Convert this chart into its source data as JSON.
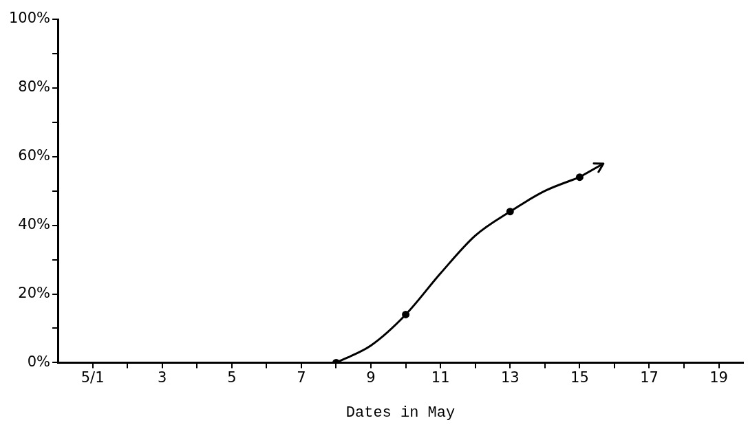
{
  "chart_data": {
    "type": "line",
    "xlabel": "Dates in May",
    "xlim": [
      0,
      19.7
    ],
    "ylim": [
      0,
      100
    ],
    "xticks": [
      {
        "value": 1,
        "label": "5/1"
      },
      {
        "value": 2,
        "label": null
      },
      3,
      {
        "value": 4,
        "label": null
      },
      5,
      {
        "value": 6,
        "label": null
      },
      7,
      {
        "value": 8,
        "label": null
      },
      9,
      {
        "value": 10,
        "label": null
      },
      11,
      {
        "value": 12,
        "label": null
      },
      13,
      {
        "value": 14,
        "label": null
      },
      15,
      {
        "value": 16,
        "label": null
      },
      17,
      {
        "value": 18,
        "label": null
      },
      19
    ],
    "yticks": [
      {
        "value": 0,
        "label": "0%"
      },
      {
        "value": 10,
        "label": null
      },
      {
        "value": 20,
        "label": "20%"
      },
      {
        "value": 30,
        "label": null
      },
      {
        "value": 40,
        "label": "40%"
      },
      {
        "value": 50,
        "label": null
      },
      {
        "value": 60,
        "label": "60%"
      },
      {
        "value": 70,
        "label": null
      },
      {
        "value": 80,
        "label": "80%"
      },
      {
        "value": 90,
        "label": null
      },
      {
        "value": 100,
        "label": "100%"
      }
    ],
    "grid": false,
    "legend": false,
    "series": [
      {
        "color": "#000000",
        "marker": "none",
        "x": [
          8,
          9,
          10,
          11,
          12,
          13,
          14,
          15
        ],
        "values": [
          0,
          5,
          14,
          26,
          37,
          44,
          50,
          54
        ]
      },
      {
        "type": "scatter",
        "color": "#000000",
        "marker": "circle",
        "x": [
          8,
          10,
          13,
          15
        ],
        "values": [
          0,
          14,
          44,
          54
        ]
      }
    ]
  }
}
